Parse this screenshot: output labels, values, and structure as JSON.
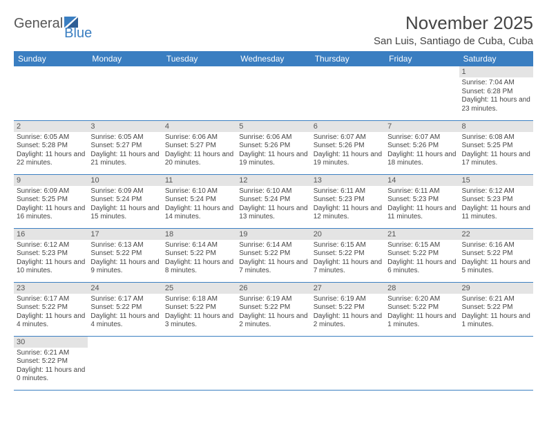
{
  "logo": {
    "textGeneral": "General",
    "textBlue": "Blue"
  },
  "title": "November 2025",
  "location": "San Luis, Santiago de Cuba, Cuba",
  "dayNames": [
    "Sunday",
    "Monday",
    "Tuesday",
    "Wednesday",
    "Thursday",
    "Friday",
    "Saturday"
  ],
  "colors": {
    "headerBg": "#3a7ec1",
    "headerText": "#ffffff",
    "dayNumBg": "#e4e4e4",
    "rowRule": "#3a7ec1",
    "textColor": "#444444"
  },
  "calendar": {
    "firstDayOffset": 6,
    "days": [
      {
        "n": 1,
        "sr": "7:04 AM",
        "ss": "6:28 PM",
        "dh": 11,
        "dm": 23
      },
      {
        "n": 2,
        "sr": "6:05 AM",
        "ss": "5:28 PM",
        "dh": 11,
        "dm": 22
      },
      {
        "n": 3,
        "sr": "6:05 AM",
        "ss": "5:27 PM",
        "dh": 11,
        "dm": 21
      },
      {
        "n": 4,
        "sr": "6:06 AM",
        "ss": "5:27 PM",
        "dh": 11,
        "dm": 20
      },
      {
        "n": 5,
        "sr": "6:06 AM",
        "ss": "5:26 PM",
        "dh": 11,
        "dm": 19
      },
      {
        "n": 6,
        "sr": "6:07 AM",
        "ss": "5:26 PM",
        "dh": 11,
        "dm": 19
      },
      {
        "n": 7,
        "sr": "6:07 AM",
        "ss": "5:26 PM",
        "dh": 11,
        "dm": 18
      },
      {
        "n": 8,
        "sr": "6:08 AM",
        "ss": "5:25 PM",
        "dh": 11,
        "dm": 17
      },
      {
        "n": 9,
        "sr": "6:09 AM",
        "ss": "5:25 PM",
        "dh": 11,
        "dm": 16
      },
      {
        "n": 10,
        "sr": "6:09 AM",
        "ss": "5:24 PM",
        "dh": 11,
        "dm": 15
      },
      {
        "n": 11,
        "sr": "6:10 AM",
        "ss": "5:24 PM",
        "dh": 11,
        "dm": 14
      },
      {
        "n": 12,
        "sr": "6:10 AM",
        "ss": "5:24 PM",
        "dh": 11,
        "dm": 13
      },
      {
        "n": 13,
        "sr": "6:11 AM",
        "ss": "5:23 PM",
        "dh": 11,
        "dm": 12
      },
      {
        "n": 14,
        "sr": "6:11 AM",
        "ss": "5:23 PM",
        "dh": 11,
        "dm": 11
      },
      {
        "n": 15,
        "sr": "6:12 AM",
        "ss": "5:23 PM",
        "dh": 11,
        "dm": 11
      },
      {
        "n": 16,
        "sr": "6:12 AM",
        "ss": "5:23 PM",
        "dh": 11,
        "dm": 10
      },
      {
        "n": 17,
        "sr": "6:13 AM",
        "ss": "5:22 PM",
        "dh": 11,
        "dm": 9
      },
      {
        "n": 18,
        "sr": "6:14 AM",
        "ss": "5:22 PM",
        "dh": 11,
        "dm": 8
      },
      {
        "n": 19,
        "sr": "6:14 AM",
        "ss": "5:22 PM",
        "dh": 11,
        "dm": 7
      },
      {
        "n": 20,
        "sr": "6:15 AM",
        "ss": "5:22 PM",
        "dh": 11,
        "dm": 7
      },
      {
        "n": 21,
        "sr": "6:15 AM",
        "ss": "5:22 PM",
        "dh": 11,
        "dm": 6
      },
      {
        "n": 22,
        "sr": "6:16 AM",
        "ss": "5:22 PM",
        "dh": 11,
        "dm": 5
      },
      {
        "n": 23,
        "sr": "6:17 AM",
        "ss": "5:22 PM",
        "dh": 11,
        "dm": 4
      },
      {
        "n": 24,
        "sr": "6:17 AM",
        "ss": "5:22 PM",
        "dh": 11,
        "dm": 4
      },
      {
        "n": 25,
        "sr": "6:18 AM",
        "ss": "5:22 PM",
        "dh": 11,
        "dm": 3
      },
      {
        "n": 26,
        "sr": "6:19 AM",
        "ss": "5:22 PM",
        "dh": 11,
        "dm": 2
      },
      {
        "n": 27,
        "sr": "6:19 AM",
        "ss": "5:22 PM",
        "dh": 11,
        "dm": 2
      },
      {
        "n": 28,
        "sr": "6:20 AM",
        "ss": "5:22 PM",
        "dh": 11,
        "dm": 1
      },
      {
        "n": 29,
        "sr": "6:21 AM",
        "ss": "5:22 PM",
        "dh": 11,
        "dm": 1
      },
      {
        "n": 30,
        "sr": "6:21 AM",
        "ss": "5:22 PM",
        "dh": 11,
        "dm": 0
      }
    ]
  },
  "labels": {
    "sunrise": "Sunrise:",
    "sunset": "Sunset:",
    "daylightPrefix": "Daylight:",
    "hoursWord": "hours",
    "and": "and",
    "minutesWord": "minutes."
  }
}
